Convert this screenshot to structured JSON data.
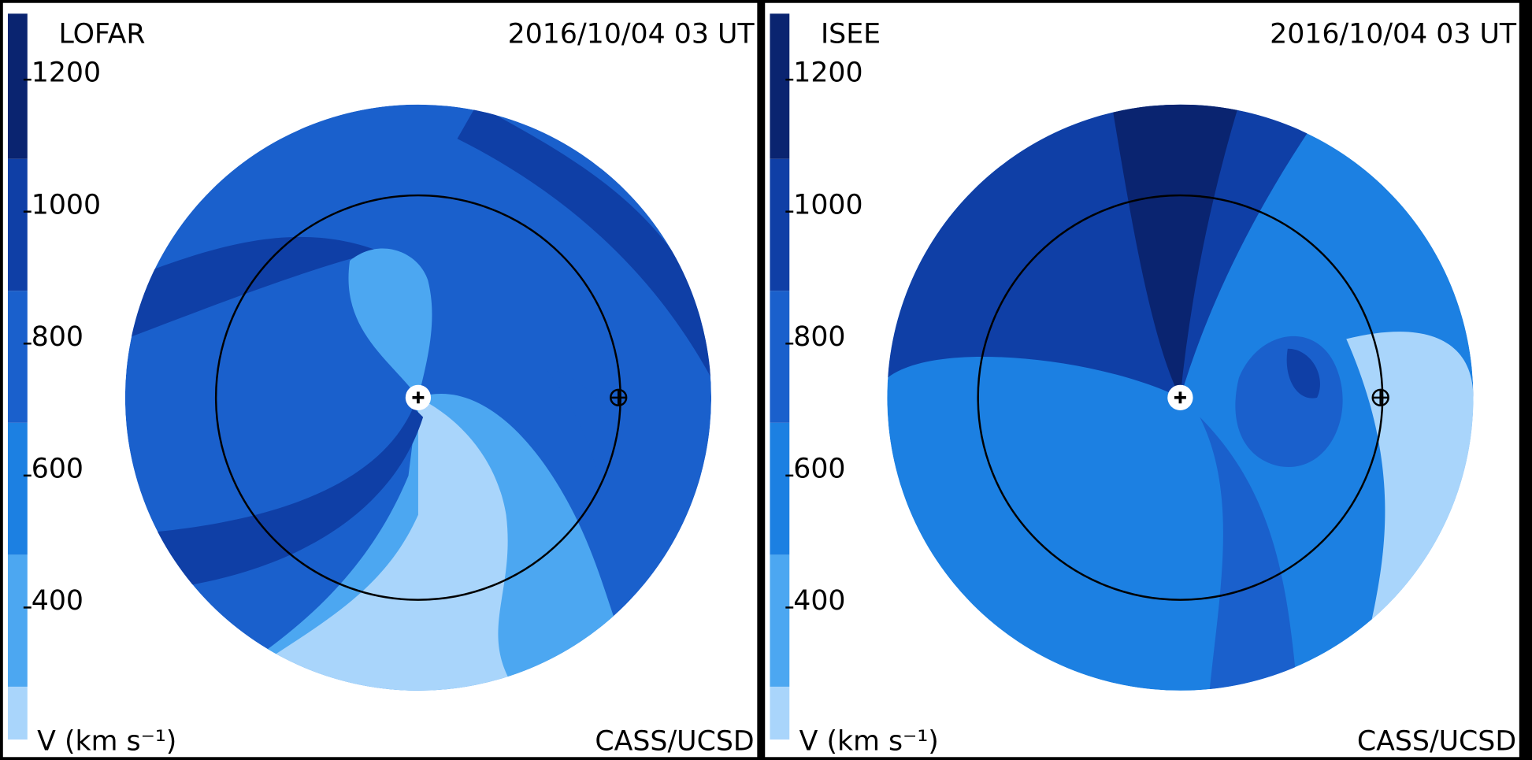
{
  "chart_data": [
    {
      "type": "velocity-map",
      "title": "LOFAR",
      "subtitle": "2016/10/04 03 UT",
      "credit": "CASS/UCSD",
      "colorbar_label": "V (km s⁻¹)",
      "ylim": [
        200,
        1300
      ],
      "yticks": [
        400,
        600,
        800,
        1000,
        1200
      ],
      "levels": [
        200,
        280,
        480,
        680,
        880,
        1080,
        1300
      ],
      "colors": [
        "#a9d5fb",
        "#4ca7f1",
        "#1c80e2",
        "#1a60cc",
        "#0f3fa6",
        "#0a2470"
      ]
    },
    {
      "type": "velocity-map",
      "title": "ISEE",
      "subtitle": "2016/10/04 03 UT",
      "credit": "CASS/UCSD",
      "colorbar_label": "V (km s⁻¹)",
      "ylim": [
        200,
        1300
      ],
      "yticks": [
        400,
        600,
        800,
        1000,
        1200
      ],
      "levels": [
        200,
        280,
        480,
        680,
        880,
        1080,
        1300
      ],
      "colors": [
        "#a9d5fb",
        "#4ca7f1",
        "#1c80e2",
        "#1a60cc",
        "#0f3fa6",
        "#0a2470"
      ]
    }
  ]
}
